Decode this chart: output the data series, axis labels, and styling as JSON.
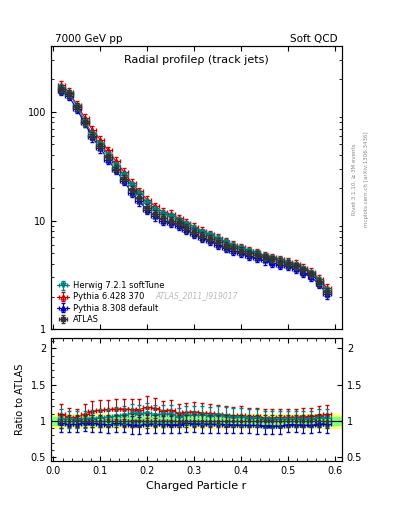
{
  "title": "Radial profileρ (track jets)",
  "top_left_label": "7000 GeV pp",
  "top_right_label": "Soft QCD",
  "right_text_1": "Rivet 3.1.10, ≥ 3M events",
  "right_text_2": "mcplots.cern.ch [arXiv:1306.3436]",
  "watermark": "ATLAS_2011_I919017",
  "xlabel": "Charged Particle r",
  "ylabel_ratio": "Ratio to ATLAS",
  "x_data": [
    0.017,
    0.033,
    0.05,
    0.067,
    0.083,
    0.1,
    0.117,
    0.133,
    0.15,
    0.167,
    0.183,
    0.2,
    0.217,
    0.233,
    0.25,
    0.267,
    0.283,
    0.3,
    0.317,
    0.333,
    0.35,
    0.367,
    0.383,
    0.4,
    0.417,
    0.433,
    0.45,
    0.467,
    0.483,
    0.5,
    0.517,
    0.533,
    0.55,
    0.567,
    0.583
  ],
  "xerr": 0.0083,
  "atlas_y": [
    160,
    145,
    110,
    80,
    60,
    48,
    38,
    30,
    24,
    19,
    16,
    13,
    11.5,
    10.5,
    10,
    9.5,
    8.5,
    7.8,
    7.2,
    6.8,
    6.3,
    5.9,
    5.6,
    5.3,
    5.0,
    4.8,
    4.6,
    4.4,
    4.2,
    4.0,
    3.8,
    3.5,
    3.2,
    2.7,
    2.2
  ],
  "atlas_yerr": [
    15,
    12,
    9,
    7,
    5,
    4,
    3,
    2.5,
    2,
    1.7,
    1.4,
    1.2,
    1.0,
    0.9,
    0.85,
    0.8,
    0.75,
    0.7,
    0.65,
    0.6,
    0.55,
    0.5,
    0.48,
    0.45,
    0.42,
    0.4,
    0.38,
    0.36,
    0.34,
    0.32,
    0.3,
    0.28,
    0.26,
    0.24,
    0.2
  ],
  "herwig_y": [
    165,
    148,
    112,
    82,
    62,
    50,
    40,
    32,
    26,
    21,
    17.5,
    14.5,
    12.5,
    11.5,
    11,
    10,
    9.2,
    8.4,
    7.8,
    7.3,
    6.8,
    6.3,
    5.9,
    5.6,
    5.2,
    5.0,
    4.7,
    4.5,
    4.3,
    4.1,
    3.9,
    3.6,
    3.3,
    2.8,
    2.3
  ],
  "herwig_yerr": [
    14,
    11,
    9,
    6,
    5,
    4,
    3,
    2.5,
    2,
    1.7,
    1.4,
    1.2,
    1.0,
    0.9,
    0.85,
    0.8,
    0.7,
    0.65,
    0.6,
    0.55,
    0.5,
    0.48,
    0.45,
    0.42,
    0.4,
    0.38,
    0.36,
    0.34,
    0.32,
    0.3,
    0.28,
    0.26,
    0.24,
    0.22,
    0.18
  ],
  "pythia6_y": [
    175,
    152,
    115,
    88,
    68,
    55,
    44,
    35,
    28,
    22,
    18.5,
    15.5,
    13.5,
    12,
    11.5,
    10.5,
    9.5,
    8.8,
    8.0,
    7.5,
    6.9,
    6.4,
    6.0,
    5.7,
    5.3,
    5.1,
    4.8,
    4.6,
    4.4,
    4.2,
    4.0,
    3.7,
    3.4,
    2.9,
    2.4
  ],
  "pythia6_yerr": [
    16,
    13,
    10,
    7,
    6,
    5,
    3.5,
    3,
    2.5,
    2,
    1.6,
    1.3,
    1.1,
    1.0,
    0.9,
    0.85,
    0.75,
    0.7,
    0.65,
    0.6,
    0.55,
    0.5,
    0.48,
    0.45,
    0.42,
    0.4,
    0.38,
    0.36,
    0.34,
    0.32,
    0.3,
    0.28,
    0.26,
    0.24,
    0.2
  ],
  "pythia8_y": [
    155,
    138,
    105,
    78,
    58,
    46,
    36,
    29,
    23,
    18,
    15,
    12.5,
    11,
    10,
    9.5,
    9.0,
    8.2,
    7.5,
    6.9,
    6.5,
    6.0,
    5.6,
    5.3,
    5.0,
    4.7,
    4.5,
    4.3,
    4.1,
    3.9,
    3.8,
    3.6,
    3.3,
    3.0,
    2.6,
    2.1
  ],
  "pythia8_yerr": [
    13,
    11,
    8,
    6,
    5,
    4,
    3,
    2.5,
    2,
    1.7,
    1.4,
    1.1,
    1.0,
    0.85,
    0.8,
    0.75,
    0.7,
    0.65,
    0.6,
    0.55,
    0.5,
    0.48,
    0.45,
    0.42,
    0.4,
    0.38,
    0.36,
    0.34,
    0.32,
    0.3,
    0.28,
    0.26,
    0.24,
    0.22,
    0.18
  ],
  "atlas_color": "#333333",
  "herwig_color": "#008080",
  "pythia6_color": "#cc0000",
  "pythia8_color": "#0000cc",
  "band_yellow": "#ffff80",
  "band_green": "#80ff80",
  "ylim_main": [
    1,
    400
  ],
  "ylim_ratio": [
    0.45,
    2.15
  ],
  "xlim": [
    -0.005,
    0.615
  ]
}
